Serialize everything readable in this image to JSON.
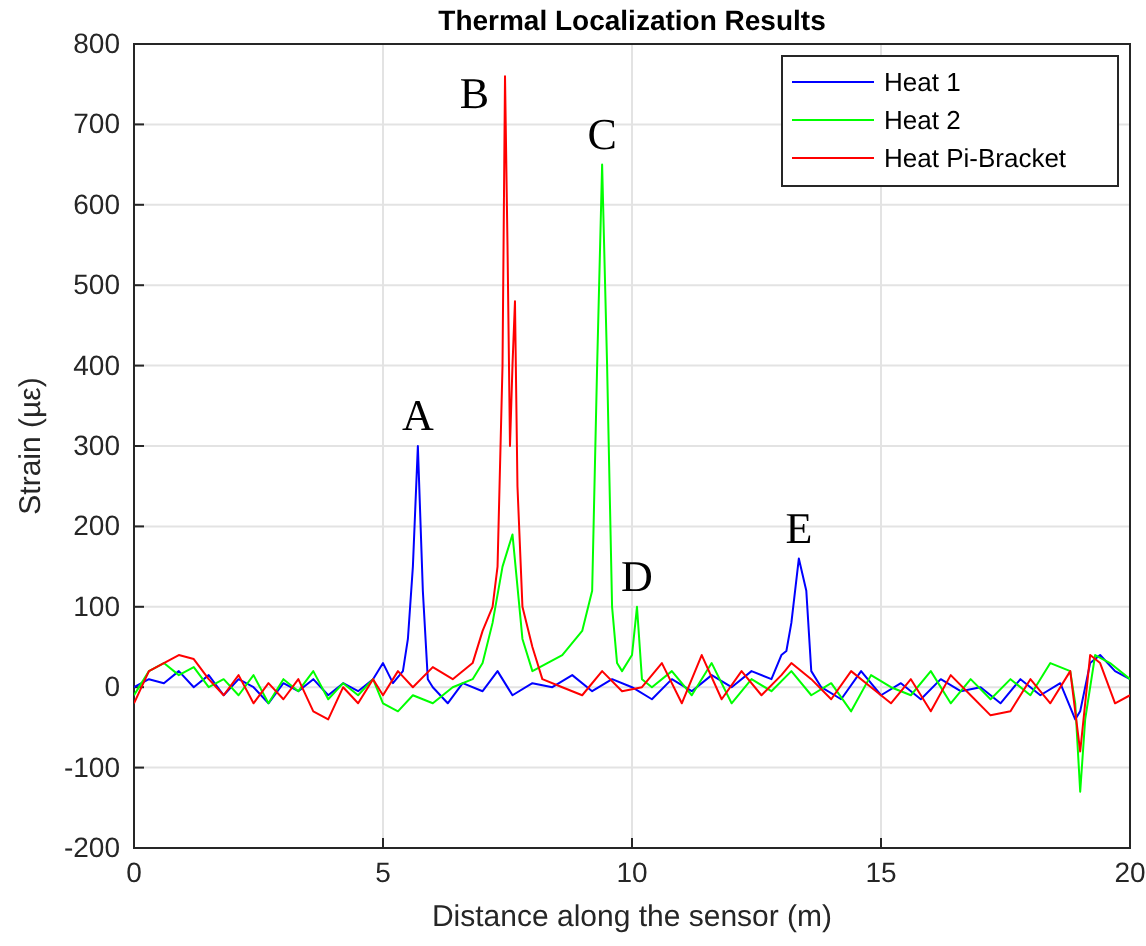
{
  "chart_data": {
    "type": "line",
    "title": "Thermal Localization Results",
    "xlabel": "Distance along the sensor (m)",
    "ylabel": "Strain (µε)",
    "xlim": [
      0,
      20
    ],
    "ylim": [
      -200,
      800
    ],
    "xticks": [
      0,
      5,
      10,
      15,
      20
    ],
    "yticks": [
      -200,
      -100,
      0,
      100,
      200,
      300,
      400,
      500,
      600,
      700,
      800
    ],
    "grid": true,
    "legend": "top right",
    "annotations": [
      {
        "text": "A",
        "x": 5.7,
        "y": 300
      },
      {
        "text": "B",
        "x": 7.45,
        "y": 760
      },
      {
        "text": "C",
        "x": 9.4,
        "y": 650
      },
      {
        "text": "D",
        "x": 10.1,
        "y": 100
      },
      {
        "text": "E",
        "x": 13.35,
        "y": 160
      }
    ],
    "series": [
      {
        "name": "Heat 1",
        "color": "#0000ff",
        "x": [
          0,
          0.3,
          0.6,
          0.9,
          1.2,
          1.5,
          1.8,
          2.1,
          2.4,
          2.7,
          3.0,
          3.3,
          3.6,
          3.9,
          4.2,
          4.5,
          4.8,
          5.0,
          5.2,
          5.4,
          5.5,
          5.6,
          5.7,
          5.8,
          5.9,
          6.0,
          6.3,
          6.6,
          7.0,
          7.3,
          7.6,
          8.0,
          8.4,
          8.8,
          9.2,
          9.6,
          10.0,
          10.4,
          10.8,
          11.2,
          11.6,
          12.0,
          12.4,
          12.8,
          13.0,
          13.1,
          13.2,
          13.35,
          13.5,
          13.6,
          13.8,
          14.2,
          14.6,
          15.0,
          15.4,
          15.8,
          16.2,
          16.6,
          17.0,
          17.4,
          17.8,
          18.2,
          18.6,
          18.9,
          19.0,
          19.2,
          19.4,
          19.7,
          20.0
        ],
        "values": [
          0,
          10,
          5,
          20,
          0,
          15,
          -10,
          10,
          0,
          -20,
          5,
          -5,
          10,
          -10,
          5,
          -5,
          10,
          30,
          5,
          20,
          60,
          150,
          300,
          120,
          10,
          0,
          -20,
          5,
          -5,
          20,
          -10,
          5,
          0,
          15,
          -5,
          10,
          0,
          -15,
          10,
          -5,
          15,
          0,
          20,
          10,
          40,
          45,
          80,
          160,
          120,
          20,
          0,
          -15,
          20,
          -10,
          5,
          -15,
          10,
          -5,
          0,
          -20,
          10,
          -10,
          5,
          -40,
          -30,
          30,
          40,
          20,
          10
        ]
      },
      {
        "name": "Heat 2",
        "color": "#00ff00",
        "x": [
          0,
          0.3,
          0.6,
          0.9,
          1.2,
          1.5,
          1.8,
          2.1,
          2.4,
          2.7,
          3.0,
          3.3,
          3.6,
          3.9,
          4.2,
          4.5,
          4.8,
          5.0,
          5.3,
          5.6,
          6.0,
          6.4,
          6.8,
          7.0,
          7.2,
          7.4,
          7.6,
          7.8,
          8.0,
          8.3,
          8.6,
          9.0,
          9.2,
          9.3,
          9.4,
          9.5,
          9.6,
          9.7,
          9.8,
          10.0,
          10.1,
          10.2,
          10.4,
          10.8,
          11.2,
          11.6,
          12.0,
          12.4,
          12.8,
          13.2,
          13.6,
          14.0,
          14.4,
          14.8,
          15.2,
          15.6,
          16.0,
          16.4,
          16.8,
          17.2,
          17.6,
          18.0,
          18.4,
          18.8,
          18.9,
          19.0,
          19.1,
          19.3,
          19.6,
          20.0
        ],
        "values": [
          -10,
          20,
          30,
          15,
          25,
          0,
          10,
          -10,
          15,
          -20,
          10,
          -5,
          20,
          -15,
          5,
          -10,
          10,
          -20,
          -30,
          -10,
          -20,
          0,
          10,
          30,
          80,
          150,
          190,
          60,
          20,
          30,
          40,
          70,
          120,
          400,
          650,
          400,
          100,
          30,
          20,
          40,
          100,
          10,
          0,
          20,
          -10,
          30,
          -20,
          10,
          -5,
          20,
          -10,
          5,
          -30,
          15,
          0,
          -10,
          20,
          -20,
          10,
          -15,
          10,
          -10,
          30,
          20,
          -20,
          -130,
          -40,
          40,
          30,
          10
        ]
      },
      {
        "name": "Heat Pi-Bracket",
        "color": "#ff0000",
        "x": [
          0,
          0.3,
          0.6,
          0.9,
          1.2,
          1.5,
          1.8,
          2.1,
          2.4,
          2.7,
          3.0,
          3.3,
          3.6,
          3.9,
          4.2,
          4.5,
          4.8,
          5.0,
          5.3,
          5.6,
          6.0,
          6.4,
          6.8,
          7.0,
          7.2,
          7.3,
          7.4,
          7.45,
          7.5,
          7.55,
          7.6,
          7.65,
          7.7,
          7.8,
          8.0,
          8.2,
          8.6,
          9.0,
          9.4,
          9.8,
          10.2,
          10.6,
          11.0,
          11.4,
          11.8,
          12.2,
          12.6,
          13.0,
          13.2,
          13.6,
          14.0,
          14.4,
          14.8,
          15.2,
          15.6,
          16.0,
          16.4,
          16.8,
          17.2,
          17.6,
          18.0,
          18.4,
          18.8,
          19.0,
          19.2,
          19.4,
          19.7,
          20.0
        ],
        "values": [
          -20,
          20,
          30,
          40,
          35,
          10,
          -10,
          15,
          -20,
          5,
          -15,
          10,
          -30,
          -40,
          0,
          -20,
          10,
          -10,
          20,
          0,
          25,
          10,
          30,
          70,
          100,
          150,
          400,
          760,
          550,
          300,
          400,
          480,
          250,
          100,
          50,
          10,
          0,
          -10,
          20,
          -5,
          0,
          30,
          -20,
          40,
          -15,
          20,
          -10,
          15,
          30,
          10,
          -15,
          20,
          0,
          -20,
          10,
          -30,
          15,
          -10,
          -35,
          -30,
          10,
          -20,
          20,
          -80,
          40,
          30,
          -20,
          -10
        ]
      }
    ]
  }
}
